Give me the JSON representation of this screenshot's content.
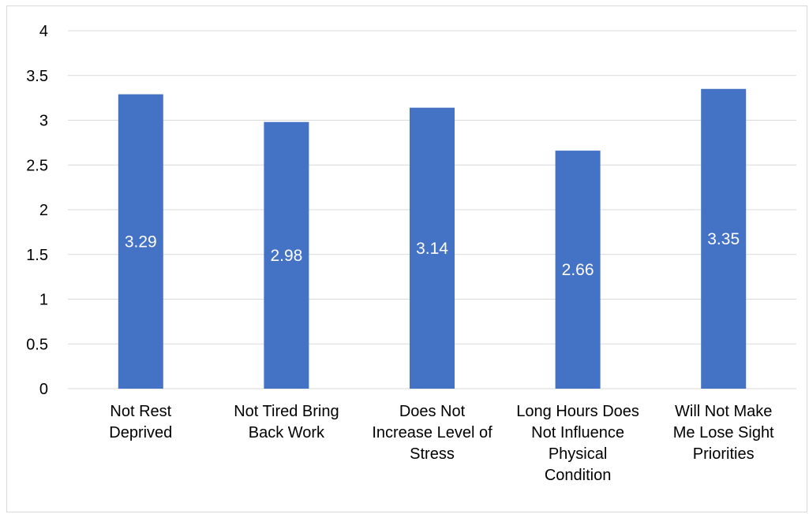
{
  "chart_data": {
    "type": "bar",
    "categories": [
      [
        "Not Rest",
        "Deprived"
      ],
      [
        "Not Tired Bring",
        "Back Work"
      ],
      [
        "Does Not",
        "Increase Level of",
        "Stress"
      ],
      [
        "Long Hours Does",
        "Not Influence",
        "Physical",
        "Condition"
      ],
      [
        "Will Not Make",
        "Me Lose Sight",
        "Priorities"
      ]
    ],
    "values": [
      3.29,
      2.98,
      3.14,
      2.66,
      3.35
    ],
    "data_labels": [
      "3.29",
      "2.98",
      "3.14",
      "2.66",
      "3.35"
    ],
    "y_ticks": [
      "0",
      "0.5",
      "1",
      "1.5",
      "2",
      "2.5",
      "3",
      "3.5",
      "4"
    ],
    "ylim": [
      0,
      4
    ],
    "title": "",
    "xlabel": "",
    "ylabel": "",
    "grid": true,
    "legend": "none",
    "bar_color": "#4472C4"
  }
}
